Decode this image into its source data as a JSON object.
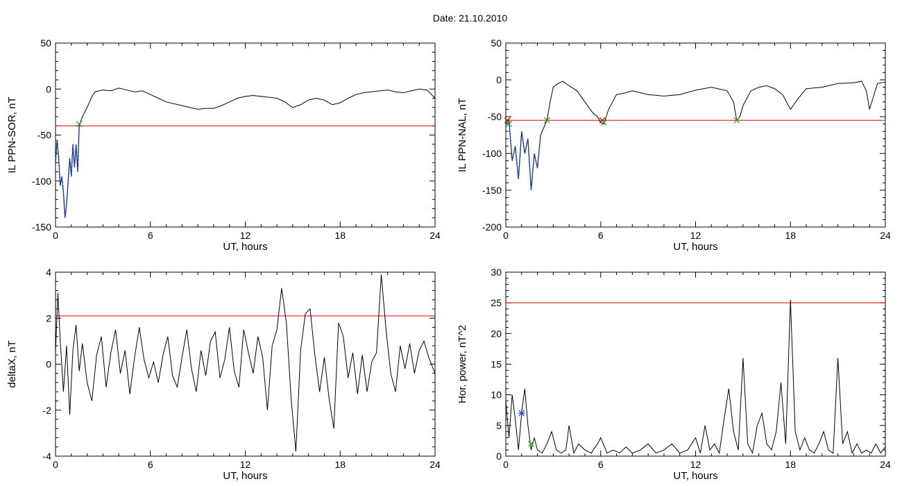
{
  "figure": {
    "title": "Date:  21.10.2010"
  },
  "colors": {
    "axis": "#000000",
    "trace": "#000000",
    "threshold": "#dd0000",
    "highlight": "#1f4fc8",
    "marker_green": "#22aa22",
    "marker_red": "#dd0000",
    "marker_blue": "#2244cc"
  },
  "chart_data": [
    {
      "id": "sor",
      "type": "line",
      "xlabel": "UT, hours",
      "ylabel": "IL PPN-SOR, nT",
      "xlim": [
        0,
        24
      ],
      "ylim": [
        -150,
        50
      ],
      "xticks": [
        0,
        6,
        12,
        18,
        24
      ],
      "yticks": [
        50,
        0,
        -50,
        -100,
        -150
      ],
      "threshold": -40,
      "highlight_range": [
        0.0,
        1.5
      ],
      "markers": [
        {
          "x": 1.5,
          "y": -38,
          "symbol": "x",
          "color": "green"
        }
      ],
      "series": [
        {
          "x": [
            0,
            0.1,
            0.2,
            0.3,
            0.4,
            0.5,
            0.6,
            0.7,
            0.8,
            0.9,
            1.0,
            1.1,
            1.2,
            1.3,
            1.4,
            1.5,
            1.7,
            2.0,
            2.3,
            2.5,
            3,
            3.5,
            4,
            4.5,
            5,
            5.5,
            6,
            6.5,
            7,
            7.5,
            8,
            8.5,
            9,
            9.5,
            10,
            10.5,
            11,
            11.5,
            12,
            12.5,
            13,
            13.5,
            14,
            14.5,
            15,
            15.5,
            16,
            16.5,
            17,
            17.5,
            18,
            18.5,
            19,
            19.5,
            20,
            20.5,
            21,
            21.5,
            22,
            22.5,
            23,
            23.5,
            24
          ],
          "y": [
            -80,
            -55,
            -75,
            -105,
            -95,
            -112,
            -140,
            -125,
            -100,
            -75,
            -95,
            -60,
            -85,
            -60,
            -90,
            -40,
            -30,
            -20,
            -8,
            -3,
            -1,
            -2,
            1,
            -1,
            -3,
            -2,
            -6,
            -10,
            -14,
            -16,
            -18,
            -20,
            -22,
            -21,
            -21,
            -18,
            -14,
            -10,
            -8,
            -7,
            -8,
            -9,
            -10,
            -14,
            -20,
            -17,
            -12,
            -10,
            -12,
            -17,
            -15,
            -10,
            -6,
            -4,
            -3,
            -2,
            -1,
            -3,
            -4,
            -2,
            0,
            -1,
            -10
          ]
        }
      ]
    },
    {
      "id": "nal",
      "type": "line",
      "xlabel": "UT, hours",
      "ylabel": "IL PPN-NAL, nT",
      "xlim": [
        0,
        24
      ],
      "ylim": [
        -200,
        50
      ],
      "xticks": [
        0,
        6,
        12,
        18,
        24
      ],
      "yticks": [
        50,
        0,
        -50,
        -100,
        -150,
        -200
      ],
      "threshold": -55,
      "highlight_range": [
        0.0,
        2.6
      ],
      "markers": [
        {
          "x": 0.1,
          "y": -55,
          "symbol": "x",
          "color": "red"
        },
        {
          "x": 0.2,
          "y": -60,
          "symbol": "x",
          "color": "green"
        },
        {
          "x": 2.6,
          "y": -55,
          "symbol": "x",
          "color": "green"
        },
        {
          "x": 6.1,
          "y": -55,
          "symbol": "x",
          "color": "red"
        },
        {
          "x": 6.2,
          "y": -58,
          "symbol": "x",
          "color": "green"
        },
        {
          "x": 14.6,
          "y": -55,
          "symbol": "x",
          "color": "green"
        }
      ],
      "series": [
        {
          "x": [
            0,
            0.2,
            0.4,
            0.6,
            0.8,
            1.0,
            1.2,
            1.4,
            1.6,
            1.8,
            2.0,
            2.2,
            2.4,
            2.6,
            2.8,
            3.0,
            3.3,
            3.6,
            4.0,
            4.5,
            5.0,
            5.5,
            5.8,
            6.0,
            6.2,
            6.5,
            7.0,
            7.5,
            8,
            9,
            10,
            11,
            12,
            13,
            14,
            14.4,
            14.6,
            14.8,
            15,
            15.5,
            16,
            16.5,
            17,
            17.5,
            18,
            18.5,
            19,
            20,
            21,
            22,
            22.5,
            22.8,
            23,
            23.5,
            24
          ],
          "y": [
            -60,
            -55,
            -110,
            -90,
            -135,
            -70,
            -100,
            -80,
            -150,
            -100,
            -120,
            -75,
            -65,
            -55,
            -30,
            -10,
            -5,
            -2,
            -8,
            -15,
            -30,
            -45,
            -50,
            -58,
            -60,
            -40,
            -20,
            -18,
            -15,
            -20,
            -22,
            -20,
            -14,
            -10,
            -15,
            -30,
            -55,
            -50,
            -35,
            -15,
            -10,
            -8,
            -12,
            -20,
            -40,
            -25,
            -12,
            -10,
            -5,
            -4,
            -2,
            -15,
            -40,
            -5,
            -3
          ]
        }
      ]
    },
    {
      "id": "deltax",
      "type": "line",
      "xlabel": "UT, hours",
      "ylabel": "deltaX, nT",
      "xlim": [
        0,
        24
      ],
      "ylim": [
        -4,
        4
      ],
      "xticks": [
        0,
        6,
        12,
        18,
        24
      ],
      "yticks": [
        4,
        2,
        0,
        -2,
        -4
      ],
      "threshold": 2.1,
      "series": [
        {
          "x": [
            0,
            0.15,
            0.3,
            0.5,
            0.7,
            0.9,
            1.1,
            1.3,
            1.5,
            1.7,
            2.0,
            2.3,
            2.6,
            2.9,
            3.2,
            3.5,
            3.8,
            4.1,
            4.4,
            4.7,
            5.0,
            5.3,
            5.6,
            5.9,
            6.2,
            6.5,
            6.8,
            7.1,
            7.4,
            7.7,
            8.0,
            8.3,
            8.6,
            8.9,
            9.2,
            9.5,
            9.8,
            10.1,
            10.4,
            10.7,
            11.0,
            11.3,
            11.6,
            11.9,
            12.2,
            12.5,
            12.8,
            13.1,
            13.4,
            13.7,
            14.0,
            14.3,
            14.6,
            14.9,
            15.2,
            15.5,
            15.8,
            16.1,
            16.4,
            16.7,
            17.0,
            17.3,
            17.6,
            17.9,
            18.2,
            18.5,
            18.8,
            19.1,
            19.4,
            19.7,
            20.0,
            20.3,
            20.6,
            20.9,
            21.2,
            21.5,
            21.8,
            22.1,
            22.4,
            22.7,
            23.0,
            23.3,
            23.6,
            24
          ],
          "y": [
            0.5,
            3.1,
            1.0,
            -1.2,
            0.8,
            -2.2,
            0.6,
            1.7,
            -0.3,
            0.9,
            -0.8,
            -1.6,
            0.4,
            1.2,
            -1.0,
            0.5,
            1.5,
            -0.4,
            0.6,
            -1.3,
            0.3,
            1.6,
            0.2,
            -0.6,
            0.1,
            -0.8,
            0.4,
            1.2,
            -0.5,
            -1.0,
            0.3,
            1.5,
            -0.2,
            -1.2,
            0.6,
            -0.5,
            1.0,
            1.4,
            -0.6,
            0.2,
            1.6,
            -0.3,
            -1.0,
            1.5,
            0.5,
            -0.4,
            1.2,
            0.3,
            -2.0,
            0.8,
            1.5,
            3.3,
            1.8,
            -1.5,
            -3.8,
            0.6,
            2.2,
            2.4,
            0.4,
            -1.2,
            0.3,
            -1.5,
            -2.8,
            1.8,
            1.2,
            -0.6,
            0.5,
            -1.3,
            0.4,
            -1.2,
            0.1,
            0.5,
            3.9,
            1.5,
            -0.4,
            -1.2,
            0.8,
            -0.2,
            0.9,
            -0.4,
            0.6,
            1.0,
            0.3,
            -0.4
          ]
        }
      ]
    },
    {
      "id": "power",
      "type": "line",
      "xlabel": "UT, hours",
      "ylabel": "Hor. power, nT^2",
      "xlim": [
        0,
        24
      ],
      "ylim": [
        0,
        30
      ],
      "xticks": [
        0,
        6,
        12,
        18,
        24
      ],
      "yticks": [
        30,
        25,
        20,
        15,
        10,
        5,
        0
      ],
      "threshold": 25,
      "markers": [
        {
          "x": 1.0,
          "y": 7,
          "symbol": "*",
          "color": "blue"
        },
        {
          "x": 1.6,
          "y": 2,
          "symbol": "x",
          "color": "green"
        }
      ],
      "series": [
        {
          "x": [
            0,
            0.2,
            0.4,
            0.6,
            0.8,
            1.0,
            1.2,
            1.4,
            1.6,
            1.8,
            2.0,
            2.3,
            2.6,
            2.9,
            3.2,
            3.5,
            3.8,
            4.0,
            4.3,
            4.6,
            5.0,
            5.4,
            5.8,
            6.0,
            6.4,
            6.8,
            7.2,
            7.6,
            8.0,
            8.5,
            9.0,
            9.5,
            10.0,
            10.5,
            11.0,
            11.5,
            12.0,
            12.3,
            12.6,
            12.9,
            13.2,
            13.5,
            13.8,
            14.1,
            14.4,
            14.7,
            15.0,
            15.3,
            15.6,
            15.9,
            16.2,
            16.5,
            16.8,
            17.1,
            17.4,
            17.7,
            18.0,
            18.3,
            18.6,
            18.9,
            19.2,
            19.5,
            19.8,
            20.1,
            20.4,
            20.7,
            21.0,
            21.3,
            21.6,
            21.9,
            22.2,
            22.5,
            22.8,
            23.1,
            23.4,
            23.7,
            24
          ],
          "y": [
            9,
            3,
            10,
            6,
            1,
            7,
            11,
            5,
            1,
            3,
            1,
            0.5,
            2,
            4,
            1,
            0.5,
            1,
            5,
            0.5,
            2,
            1,
            0.5,
            2,
            3,
            0.5,
            1,
            0.5,
            1.5,
            0.5,
            1,
            2,
            0.5,
            1,
            2,
            0.5,
            1,
            3,
            0.5,
            5,
            1,
            2,
            0.5,
            6,
            11,
            4,
            1,
            16,
            2,
            0.5,
            5,
            7,
            2,
            1,
            4,
            12,
            2,
            25.5,
            4,
            1,
            3,
            1,
            0.5,
            2,
            4,
            1,
            0.5,
            16,
            2,
            4,
            0.5,
            2,
            0.5,
            1,
            0.5,
            2,
            0.5,
            1.5
          ]
        }
      ]
    }
  ]
}
